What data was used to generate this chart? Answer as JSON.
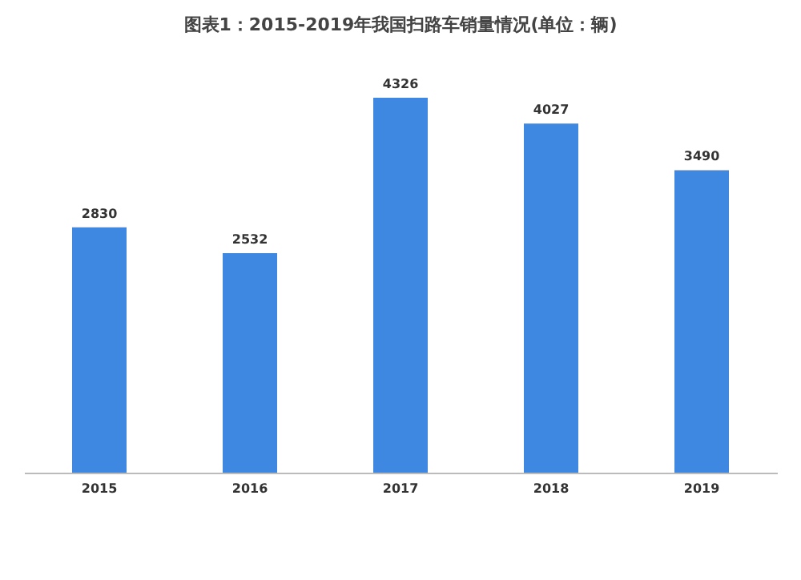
{
  "chart_data": {
    "type": "bar",
    "title": "图表1：2015-2019年我国扫路车销量情况(单位：辆)",
    "categories": [
      "2015",
      "2016",
      "2017",
      "2018",
      "2019"
    ],
    "values": [
      2830,
      2532,
      4326,
      4027,
      3490
    ],
    "color": "#3f88e2",
    "data_labels": true
  }
}
